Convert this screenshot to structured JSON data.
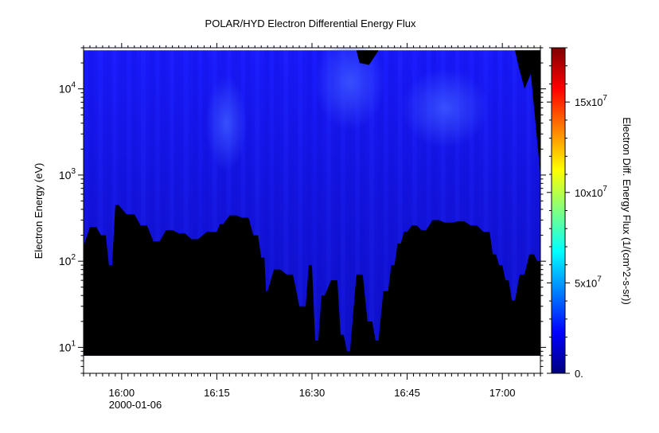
{
  "chart_data": {
    "type": "heatmap",
    "title": "POLAR/HYD  Electron Differential Energy Flux",
    "ylabel": "Electron Energy (eV)",
    "xlabel": "",
    "x_date_label": "2000-01-06",
    "x_ticks": [
      "16:00",
      "16:15",
      "16:30",
      "16:45",
      "17:00"
    ],
    "x_tick_minutes": [
      960,
      975,
      990,
      1005,
      1020
    ],
    "xlim_minutes": [
      954,
      1026
    ],
    "y_scale": "log",
    "ylim": [
      5,
      30000
    ],
    "y_ticks": [
      {
        "base": "10",
        "exp": "1",
        "value": 10
      },
      {
        "base": "10",
        "exp": "2",
        "value": 100
      },
      {
        "base": "10",
        "exp": "3",
        "value": 1000
      },
      {
        "base": "10",
        "exp": "4",
        "value": 10000
      }
    ],
    "data_energy_range": [
      8,
      28000
    ],
    "colorbar": {
      "label": "Electron Diff. Energy Flux (1/(cm^2-s-sr))",
      "range": [
        0,
        180000000
      ],
      "ticks": [
        {
          "text": "0.",
          "value": 0
        },
        {
          "text": "5x10",
          "exp": "7",
          "value": 50000000
        },
        {
          "text": "10x10",
          "exp": "7",
          "value": 100000000
        },
        {
          "text": "15x10",
          "exp": "7",
          "value": 150000000
        }
      ],
      "colormap": [
        "#00007f",
        "#0000ff",
        "#0080ff",
        "#00ffff",
        "#80ff80",
        "#ffff00",
        "#ff8000",
        "#ff0000",
        "#7f0000"
      ]
    },
    "low_energy_cutoff_eV": [
      {
        "t": 954.0,
        "e": 150
      },
      {
        "t": 956.0,
        "e": 250
      },
      {
        "t": 957.5,
        "e": 200
      },
      {
        "t": 958.5,
        "e": 90
      },
      {
        "t": 959.5,
        "e": 450
      },
      {
        "t": 962.0,
        "e": 350
      },
      {
        "t": 964.0,
        "e": 260
      },
      {
        "t": 966.0,
        "e": 170
      },
      {
        "t": 968.0,
        "e": 230
      },
      {
        "t": 970.0,
        "e": 210
      },
      {
        "t": 972.0,
        "e": 180
      },
      {
        "t": 975.0,
        "e": 220
      },
      {
        "t": 976.0,
        "e": 270
      },
      {
        "t": 978.0,
        "e": 340
      },
      {
        "t": 980.0,
        "e": 320
      },
      {
        "t": 981.5,
        "e": 200
      },
      {
        "t": 982.5,
        "e": 110
      },
      {
        "t": 983.0,
        "e": 45
      },
      {
        "t": 985.0,
        "e": 80
      },
      {
        "t": 987.0,
        "e": 70
      },
      {
        "t": 989.0,
        "e": 30
      },
      {
        "t": 990.0,
        "e": 90
      },
      {
        "t": 991.0,
        "e": 12
      },
      {
        "t": 992.0,
        "e": 40
      },
      {
        "t": 994.0,
        "e": 60
      },
      {
        "t": 995.0,
        "e": 14
      },
      {
        "t": 996.0,
        "e": 9
      },
      {
        "t": 998.0,
        "e": 70
      },
      {
        "t": 999.5,
        "e": 20
      },
      {
        "t": 1000.5,
        "e": 12
      },
      {
        "t": 1002.0,
        "e": 45
      },
      {
        "t": 1003.0,
        "e": 90
      },
      {
        "t": 1004.0,
        "e": 160
      },
      {
        "t": 1005.0,
        "e": 220
      },
      {
        "t": 1006.5,
        "e": 260
      },
      {
        "t": 1008.0,
        "e": 230
      },
      {
        "t": 1010.0,
        "e": 300
      },
      {
        "t": 1012.0,
        "e": 280
      },
      {
        "t": 1014.0,
        "e": 290
      },
      {
        "t": 1016.0,
        "e": 260
      },
      {
        "t": 1018.0,
        "e": 220
      },
      {
        "t": 1019.0,
        "e": 120
      },
      {
        "t": 1020.0,
        "e": 90
      },
      {
        "t": 1021.0,
        "e": 60
      },
      {
        "t": 1022.0,
        "e": 35
      },
      {
        "t": 1023.5,
        "e": 70
      },
      {
        "t": 1025.0,
        "e": 120
      },
      {
        "t": 1026.0,
        "e": 100
      }
    ],
    "high_energy_gap": [
      {
        "t": 997.0,
        "e": 28000
      },
      {
        "t": 997.5,
        "e": 20000
      },
      {
        "t": 999.0,
        "e": 19000
      },
      {
        "t": 1000.5,
        "e": 28000
      },
      {
        "t": 1022.0,
        "e": 28000
      },
      {
        "t": 1022.5,
        "e": 19000
      },
      {
        "t": 1023.5,
        "e": 10000
      },
      {
        "t": 1024.5,
        "e": 15000
      },
      {
        "t": 1026.0,
        "e": 1000
      }
    ]
  }
}
